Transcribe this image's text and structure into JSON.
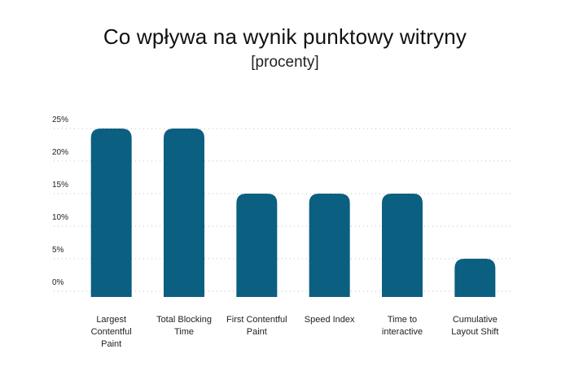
{
  "title": "Co wpływa na wynik punktowy witryny",
  "subtitle": "[procenty]",
  "chart_data": {
    "type": "bar",
    "title": "Co wpływa na wynik punktowy witryny",
    "subtitle": "[procenty]",
    "xlabel": "",
    "ylabel": "",
    "ylim": [
      0,
      25
    ],
    "yticks": [
      "0%",
      "5%",
      "10%",
      "15%",
      "20%",
      "25%"
    ],
    "ytick_values": [
      0,
      5,
      10,
      15,
      20,
      25
    ],
    "grid": true,
    "categories": [
      [
        "Largest",
        "Contentful",
        "Paint"
      ],
      [
        "Total Blocking",
        "Time"
      ],
      [
        "First Contentful",
        "Paint"
      ],
      [
        "Speed Index"
      ],
      [
        "Time to",
        "interactive"
      ],
      [
        "Cumulative",
        "Layout Shift"
      ]
    ],
    "values": [
      25,
      25,
      15,
      15,
      15,
      5
    ],
    "bar_color": "#0b5f80"
  }
}
